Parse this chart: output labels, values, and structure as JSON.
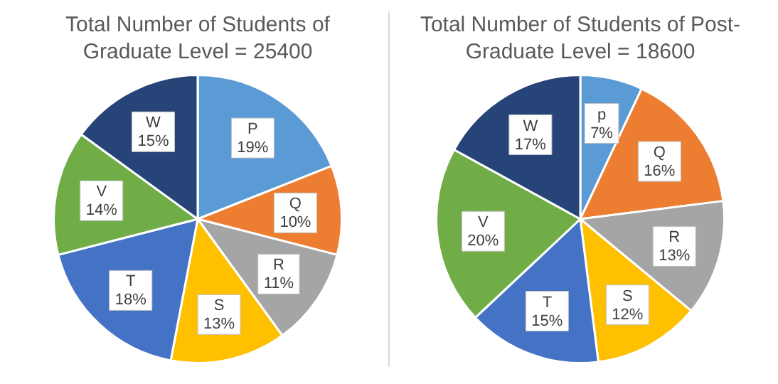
{
  "chart_data": [
    {
      "type": "pie",
      "title": "Total Number of Students of Graduate Level = 25400",
      "categories": [
        "P",
        "Q",
        "R",
        "S",
        "T",
        "V",
        "W"
      ],
      "values": [
        19,
        10,
        11,
        13,
        18,
        14,
        15
      ],
      "value_labels": [
        "19%",
        "10%",
        "11%",
        "13%",
        "18%",
        "14%",
        "15%"
      ],
      "colors": [
        "#5b9bd5",
        "#ed7d31",
        "#a5a5a5",
        "#ffc000",
        "#4472c4",
        "#70ad47",
        "#264478"
      ],
      "legend": false
    },
    {
      "type": "pie",
      "title": "Total Number of Students of Post-Graduate Level = 18600",
      "categories": [
        "p",
        "Q",
        "R",
        "S",
        "T",
        "V",
        "W"
      ],
      "values": [
        7,
        16,
        13,
        12,
        15,
        20,
        17
      ],
      "value_labels": [
        "7%",
        "16%",
        "13%",
        "12%",
        "15%",
        "20%",
        "17%"
      ],
      "colors": [
        "#5b9bd5",
        "#ed7d31",
        "#a5a5a5",
        "#ffc000",
        "#4472c4",
        "#70ad47",
        "#264478"
      ],
      "legend": false
    }
  ]
}
